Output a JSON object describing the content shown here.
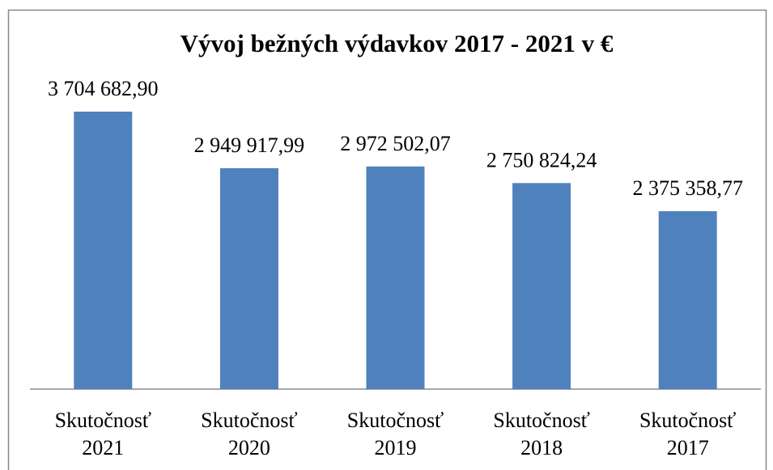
{
  "chart_data": {
    "type": "bar",
    "title": "Vývoj bežných výdavkov 2017 - 2021 v €",
    "categories": [
      "Skutočnosť 2021",
      "Skutočnosť 2020",
      "Skutočnosť 2019",
      "Skutočnosť 2018",
      "Skutočnosť 2017"
    ],
    "values": [
      3704682.9,
      2949917.99,
      2972502.07,
      2750824.24,
      2375358.77
    ],
    "value_labels": [
      "3 704 682,90",
      "2 949 917,99",
      "2 972 502,07",
      "2 750 824,24",
      "2 375 358,77"
    ],
    "color": "#4f81bd"
  }
}
